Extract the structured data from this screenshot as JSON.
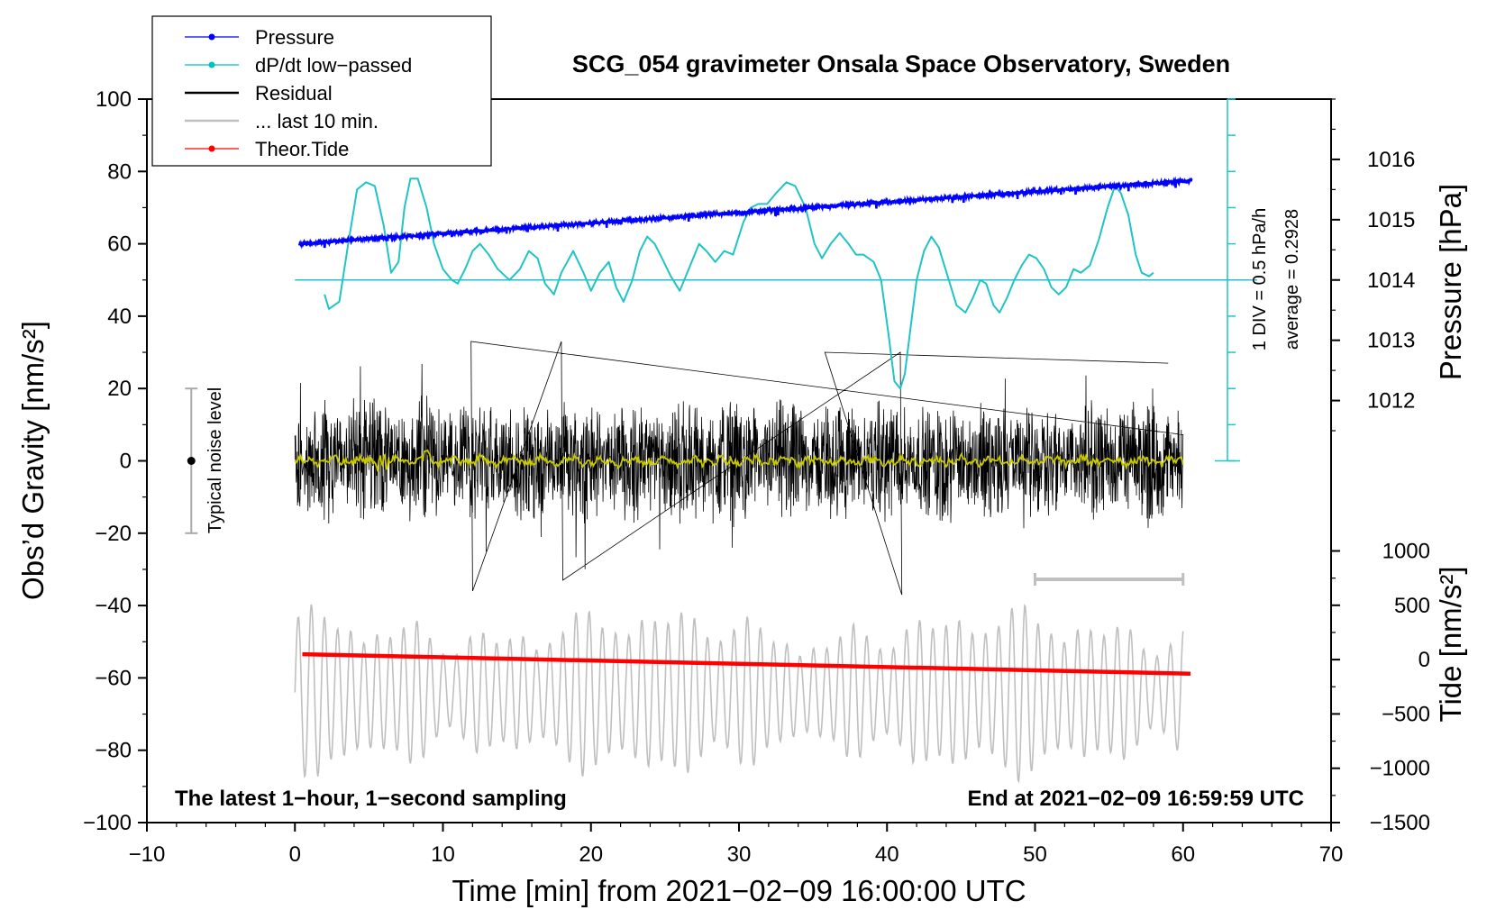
{
  "chart_data": {
    "type": "line",
    "title": "SCG_054 gravimeter Onsala Space Observatory, Sweden",
    "xlabel": "Time [min] from 2021−02−09 16:00:00 UTC",
    "ylabel": "Obs’d Gravity [nm/s²]",
    "ylabel_pressure": "Pressure [hPa]",
    "ylabel_tide": "Tide [nm/s²]",
    "xlim": [
      -10,
      70
    ],
    "ylim": [
      -100,
      100
    ],
    "pressure_lim": [
      1011,
      1017
    ],
    "tide_lim": [
      -1500,
      1000
    ],
    "x_ticks": [
      "−10",
      "0",
      "10",
      "20",
      "30",
      "40",
      "50",
      "60",
      "70"
    ],
    "y_ticks": [
      "100",
      "80",
      "60",
      "40",
      "20",
      "0",
      "−20",
      "−40",
      "−60",
      "−80",
      "−100"
    ],
    "pressure_ticks": [
      "1016",
      "1015",
      "1014",
      "1013",
      "1012"
    ],
    "tide_ticks": [
      "1000",
      "500",
      "0",
      "−500",
      "−1000",
      "−1500"
    ],
    "legend": [
      {
        "label": "Pressure",
        "color": "#0000ff",
        "marker": true
      },
      {
        "label": "dP/dt low−passed",
        "color": "#00c0c0",
        "marker": true
      },
      {
        "label": "Residual",
        "color": "#000000",
        "marker": false
      },
      {
        "label": "... last 10 min.",
        "color": "#bfbfbf",
        "marker": false
      },
      {
        "label": "Theor.Tide",
        "color": "#ff0000",
        "marker": true
      }
    ],
    "legend_position": "top-left",
    "annotations": {
      "noise_label": "Typical noise level",
      "noise_range": [
        -20,
        20
      ],
      "scale_label": "1 DIV = 0.5 hPa/h",
      "average_label": "average = 0.2928",
      "bottom_left": "The latest 1−hour, 1−second sampling",
      "bottom_right": "End at 2021−02−09 16:59:59 UTC",
      "last10_bar_x": [
        50,
        60
      ]
    },
    "series": [
      {
        "name": "Pressure",
        "axis": "pressure",
        "x_range": [
          0.3,
          60.6
        ],
        "start": 1014.6,
        "end": 1015.65
      },
      {
        "name": "dP/dt low−passed",
        "axis": "gravity",
        "x": [
          2,
          2.3,
          3,
          3.6,
          4.2,
          4.8,
          5.4,
          6,
          6.5,
          7,
          7.4,
          7.8,
          8.3,
          8.9,
          9.4,
          10,
          10.6,
          11,
          11.5,
          12,
          12.5,
          13.1,
          13.7,
          14.5,
          15.2,
          15.8,
          16.4,
          16.9,
          17.5,
          18,
          18.8,
          19.5,
          20,
          20.6,
          21.2,
          21.7,
          22.2,
          22.8,
          23.3,
          23.8,
          24.3,
          24.8,
          25.4,
          26,
          26.6,
          27.3,
          27.8,
          28.4,
          29,
          29.6,
          30.3,
          30.8,
          31.3,
          31.9,
          32.5,
          33.2,
          33.8,
          34.5,
          35.1,
          35.6,
          36.2,
          36.8,
          37.4,
          37.9,
          38.4,
          39.1,
          39.6,
          40.1,
          40.5,
          40.9,
          41.2,
          41.6,
          42,
          42.5,
          43,
          43.5,
          44.1,
          44.7,
          45.3,
          45.8,
          46.3,
          46.7,
          47.2,
          47.6,
          48.1,
          48.6,
          49.1,
          49.6,
          50.1,
          50.6,
          51.1,
          51.6,
          52.1,
          52.6,
          53.1,
          53.7,
          54.3,
          54.9,
          55.4,
          55.8,
          56.3,
          56.8,
          57.2,
          57.7,
          58
        ],
        "y": [
          46,
          42,
          44,
          60,
          75,
          77,
          76,
          65,
          52,
          55,
          70,
          78,
          78,
          70,
          60,
          53,
          50,
          49,
          53,
          58,
          60,
          57,
          53,
          50,
          53,
          58,
          56,
          49,
          46,
          52,
          58,
          52,
          47,
          52,
          55,
          48,
          44,
          50,
          58,
          62,
          60,
          56,
          51,
          47,
          53,
          60,
          58,
          55,
          58,
          57,
          66,
          70,
          71,
          71,
          74,
          77,
          76,
          70,
          60,
          56,
          60,
          63,
          60,
          57,
          57,
          55,
          50,
          35,
          22,
          20,
          24,
          37,
          50,
          58,
          62,
          59,
          51,
          43,
          41,
          45,
          50,
          49,
          43,
          41,
          45,
          50,
          54,
          57,
          56,
          53,
          48,
          46,
          48,
          53,
          52,
          54,
          61,
          70,
          76,
          74,
          68,
          57,
          52,
          51,
          52
        ]
      },
      {
        "name": "Residual",
        "axis": "gravity",
        "x_range": [
          0,
          60
        ],
        "spikes_max": 33,
        "spikes_min": -37
      },
      {
        "name": "... last 10 min.",
        "axis": "gravity",
        "x_range": [
          0,
          60
        ],
        "y_range": [
          -90,
          -38
        ]
      },
      {
        "name": "Theor.Tide",
        "axis": "tide",
        "x_range": [
          0.5,
          60.5
        ],
        "start": 50,
        "end": -130
      }
    ],
    "colors": {
      "pressure": "#0000ff",
      "dpdt": "#20c4c4",
      "residual": "#000000",
      "last10": "#bfbfbf",
      "tide": "#ff0000",
      "smooth": "#c8c800"
    }
  }
}
